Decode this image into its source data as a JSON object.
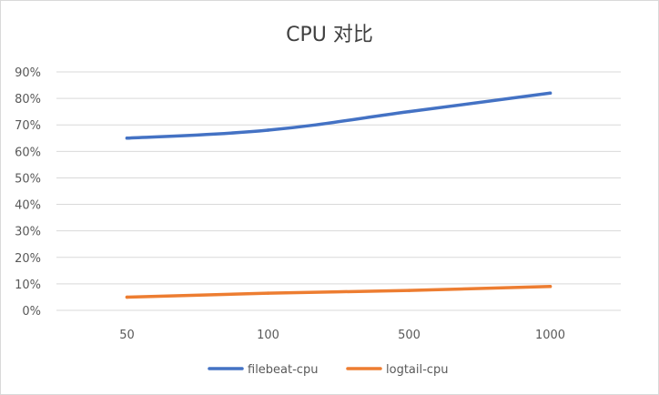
{
  "chart_data": {
    "type": "line",
    "title": "CPU 对比",
    "categories": [
      "50",
      "100",
      "500",
      "1000"
    ],
    "y_ticks": [
      "0%",
      "10%",
      "20%",
      "30%",
      "40%",
      "50%",
      "60%",
      "70%",
      "80%",
      "90%"
    ],
    "ylim": [
      0,
      0.9
    ],
    "y_tick_values": [
      0,
      0.1,
      0.2,
      0.3,
      0.4,
      0.5,
      0.6,
      0.7,
      0.8,
      0.9
    ],
    "grid": true,
    "legend_position": "bottom",
    "series": [
      {
        "name": "filebeat-cpu",
        "color": "#4472C4",
        "values": [
          0.65,
          0.68,
          0.75,
          0.82
        ]
      },
      {
        "name": "logtail-cpu",
        "color": "#ED7D31",
        "values": [
          0.05,
          0.065,
          0.075,
          0.09
        ]
      }
    ]
  }
}
